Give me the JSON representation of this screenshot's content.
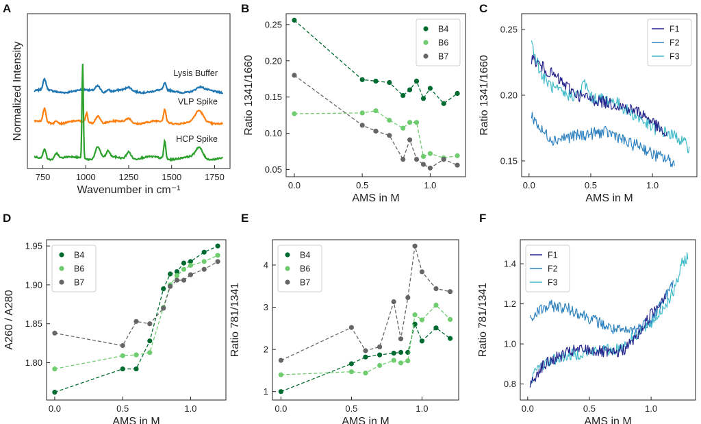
{
  "figure": {
    "panel_labels": [
      "A",
      "B",
      "C",
      "D",
      "E",
      "F"
    ]
  },
  "colors": {
    "B4": "#006b30",
    "B6": "#6fcc6f",
    "B7": "#666666",
    "F1": "#26268c",
    "F2": "#2f82c0",
    "F3": "#3fbac9",
    "lysis": "#1f77b4",
    "vlp": "#ff7f0e",
    "hcp": "#2ca02c"
  },
  "chart_data": [
    {
      "panel": "A",
      "type": "line",
      "title": "",
      "xlabel": "Wavenumber in cm⁻¹",
      "ylabel": "Normalized Intensity",
      "xlim": [
        660,
        1840
      ],
      "xticks": [
        "750",
        "1000",
        "1250",
        "1500",
        "1750"
      ],
      "y_tick_labels": false,
      "annotations": [
        "Lysis Buffer",
        "VLP Spike",
        "HCP Spike"
      ],
      "series": [
        {
          "name": "Lysis Buffer",
          "color_key": "lysis",
          "baseline": 2.6,
          "peaks": [
            [
              760,
              0.35,
              9
            ],
            [
              1070,
              0.2,
              14
            ],
            [
              1130,
              0.08,
              10
            ],
            [
              1250,
              0.1,
              14
            ],
            [
              1460,
              0.22,
              7
            ],
            [
              1665,
              0.1,
              20
            ]
          ]
        },
        {
          "name": "VLP Spike",
          "color_key": "vlp",
          "baseline": 1.55,
          "peaks": [
            [
              760,
              0.45,
              8
            ],
            [
              830,
              0.1,
              10
            ],
            [
              1005,
              0.3,
              6
            ],
            [
              1070,
              0.25,
              14
            ],
            [
              1250,
              0.15,
              15
            ],
            [
              1460,
              0.42,
              7
            ],
            [
              1660,
              0.35,
              22
            ]
          ]
        },
        {
          "name": "HCP Spike",
          "color_key": "hcp",
          "baseline": 0.35,
          "peaks": [
            [
              760,
              0.35,
              8
            ],
            [
              830,
              0.2,
              10
            ],
            [
              982,
              3.2,
              4
            ],
            [
              1070,
              0.4,
              14
            ],
            [
              1130,
              0.2,
              10
            ],
            [
              1250,
              0.25,
              14
            ],
            [
              1460,
              0.6,
              6
            ],
            [
              1660,
              0.35,
              20
            ]
          ]
        }
      ],
      "ylim": [
        0,
        5.2
      ]
    },
    {
      "panel": "B",
      "type": "scatter",
      "xlabel": "AMS in M",
      "ylabel": "Ratio 1341/1660",
      "xlim": [
        -0.06,
        1.26
      ],
      "ylim": [
        0.04,
        0.265
      ],
      "xticks": [
        0,
        0.5,
        1.0
      ],
      "xtick_labels": [
        "0.0",
        "0.5",
        "1.0"
      ],
      "yticks": [
        0.05,
        0.1,
        0.15,
        0.2,
        0.25
      ],
      "ytick_labels": [
        "0.05",
        "0.10",
        "0.15",
        "0.20",
        "0.25"
      ],
      "legend": "top-right",
      "x": [
        0,
        0.5,
        0.6,
        0.7,
        0.8,
        0.85,
        0.9,
        0.95,
        1.0,
        1.1,
        1.2
      ],
      "series": [
        {
          "name": "B4",
          "values": [
            0.256,
            0.174,
            0.172,
            0.17,
            0.152,
            0.16,
            0.172,
            0.148,
            0.162,
            0.141,
            0.155
          ]
        },
        {
          "name": "B6",
          "values": [
            0.127,
            0.128,
            0.131,
            0.118,
            0.107,
            0.115,
            0.115,
            0.068,
            0.072,
            0.066,
            0.069
          ]
        },
        {
          "name": "B7",
          "values": [
            0.18,
            0.111,
            0.103,
            0.097,
            0.064,
            0.091,
            0.064,
            0.057,
            0.052,
            0.064,
            0.056
          ]
        }
      ]
    },
    {
      "panel": "C",
      "type": "line",
      "xlabel": "AMS in M",
      "ylabel": "Ratio 1341/1660",
      "xlim": [
        -0.06,
        1.36
      ],
      "ylim": [
        0.138,
        0.262
      ],
      "xticks": [
        0,
        0.5,
        1.0
      ],
      "xtick_labels": [
        "0.0",
        "0.5",
        "1.0"
      ],
      "yticks": [
        0.15,
        0.2,
        0.25
      ],
      "ytick_labels": [
        "0.15",
        "0.20",
        "0.25"
      ],
      "legend": "top-right",
      "series": [
        {
          "name": "F1",
          "x_range": [
            0.02,
            1.12
          ],
          "anchors": [
            [
              0.02,
              0.228
            ],
            [
              0.1,
              0.222
            ],
            [
              0.2,
              0.215
            ],
            [
              0.3,
              0.207
            ],
            [
              0.4,
              0.2
            ],
            [
              0.5,
              0.197
            ],
            [
              0.6,
              0.195
            ],
            [
              0.7,
              0.193
            ],
            [
              0.8,
              0.19
            ],
            [
              0.9,
              0.187
            ],
            [
              1.0,
              0.18
            ],
            [
              1.12,
              0.168
            ]
          ]
        },
        {
          "name": "F2",
          "x_range": [
            0.02,
            1.18
          ],
          "anchors": [
            [
              0.02,
              0.185
            ],
            [
              0.1,
              0.173
            ],
            [
              0.2,
              0.166
            ],
            [
              0.3,
              0.168
            ],
            [
              0.45,
              0.17
            ],
            [
              0.6,
              0.172
            ],
            [
              0.7,
              0.17
            ],
            [
              0.8,
              0.163
            ],
            [
              0.9,
              0.162
            ],
            [
              1.0,
              0.155
            ],
            [
              1.1,
              0.152
            ],
            [
              1.18,
              0.148
            ]
          ]
        },
        {
          "name": "F3",
          "x_range": [
            0.02,
            1.3
          ],
          "anchors": [
            [
              0.02,
              0.24
            ],
            [
              0.1,
              0.215
            ],
            [
              0.2,
              0.205
            ],
            [
              0.3,
              0.2
            ],
            [
              0.4,
              0.2
            ],
            [
              0.45,
              0.21
            ],
            [
              0.5,
              0.198
            ],
            [
              0.6,
              0.197
            ],
            [
              0.7,
              0.195
            ],
            [
              0.8,
              0.188
            ],
            [
              0.9,
              0.182
            ],
            [
              1.0,
              0.175
            ],
            [
              1.1,
              0.172
            ],
            [
              1.2,
              0.168
            ],
            [
              1.3,
              0.16
            ]
          ]
        }
      ]
    },
    {
      "panel": "D",
      "type": "scatter",
      "xlabel": "AMS in M",
      "ylabel": "A260 / A280",
      "xlim": [
        -0.06,
        1.26
      ],
      "ylim": [
        1.752,
        1.958
      ],
      "xticks": [
        0,
        0.5,
        1.0
      ],
      "xtick_labels": [
        "0.0",
        "0.5",
        "1.0"
      ],
      "yticks": [
        1.8,
        1.85,
        1.9,
        1.95
      ],
      "ytick_labels": [
        "1.80",
        "1.85",
        "1.90",
        "1.95"
      ],
      "legend": "top-left",
      "x": [
        0,
        0.5,
        0.6,
        0.7,
        0.8,
        0.85,
        0.9,
        0.95,
        1.0,
        1.1,
        1.2
      ],
      "series": [
        {
          "name": "B4",
          "values": [
            1.762,
            1.792,
            1.792,
            1.828,
            1.895,
            1.914,
            1.917,
            1.928,
            1.93,
            1.942,
            1.95
          ]
        },
        {
          "name": "B6",
          "values": [
            1.792,
            1.809,
            1.81,
            1.813,
            1.871,
            1.9,
            1.912,
            1.92,
            1.925,
            1.93,
            1.938
          ]
        },
        {
          "name": "B7",
          "values": [
            1.838,
            1.822,
            1.853,
            1.85,
            1.87,
            1.898,
            1.906,
            1.906,
            1.913,
            1.92,
            1.93
          ]
        }
      ]
    },
    {
      "panel": "E",
      "type": "scatter",
      "xlabel": "AMS in M",
      "ylabel": "Ratio 781/1341",
      "xlim": [
        -0.06,
        1.26
      ],
      "ylim": [
        0.8,
        4.6
      ],
      "xticks": [
        0,
        0.5,
        1.0
      ],
      "xtick_labels": [
        "0.0",
        "0.5",
        "1.0"
      ],
      "yticks": [
        1,
        2,
        3,
        4
      ],
      "ytick_labels": [
        "1",
        "2",
        "3",
        "4"
      ],
      "legend": "top-left",
      "x": [
        0,
        0.5,
        0.6,
        0.7,
        0.8,
        0.85,
        0.9,
        0.95,
        1.0,
        1.1,
        1.2
      ],
      "series": [
        {
          "name": "B4",
          "values": [
            1.0,
            1.66,
            1.82,
            1.87,
            1.91,
            1.93,
            1.93,
            2.6,
            2.2,
            2.51,
            2.26
          ]
        },
        {
          "name": "B6",
          "values": [
            1.4,
            1.47,
            1.44,
            1.62,
            1.74,
            1.68,
            1.73,
            2.82,
            2.7,
            3.05,
            2.71
          ]
        },
        {
          "name": "B7",
          "values": [
            1.74,
            2.52,
            1.97,
            2.06,
            3.13,
            2.25,
            3.23,
            4.45,
            3.84,
            3.44,
            3.37
          ]
        }
      ]
    },
    {
      "panel": "F",
      "type": "line",
      "xlabel": "AMS in M",
      "ylabel": "Ratio 781/1341",
      "xlim": [
        -0.06,
        1.36
      ],
      "ylim": [
        0.72,
        1.52
      ],
      "xticks": [
        0,
        0.5,
        1.0
      ],
      "xtick_labels": [
        "0.0",
        "0.5",
        "1.0"
      ],
      "yticks": [
        0.8,
        1.0,
        1.2,
        1.4
      ],
      "ytick_labels": [
        "0.8",
        "1.0",
        "1.2",
        "1.4"
      ],
      "legend": "top-left",
      "series": [
        {
          "name": "F1",
          "x_range": [
            0.02,
            1.12
          ],
          "anchors": [
            [
              0.02,
              0.79
            ],
            [
              0.1,
              0.88
            ],
            [
              0.2,
              0.92
            ],
            [
              0.3,
              0.95
            ],
            [
              0.4,
              0.97
            ],
            [
              0.5,
              0.97
            ],
            [
              0.6,
              0.96
            ],
            [
              0.7,
              0.95
            ],
            [
              0.8,
              0.98
            ],
            [
              0.9,
              1.05
            ],
            [
              1.0,
              1.15
            ],
            [
              1.12,
              1.25
            ]
          ]
        },
        {
          "name": "F2",
          "x_range": [
            0.02,
            1.18
          ],
          "anchors": [
            [
              0.02,
              1.12
            ],
            [
              0.1,
              1.17
            ],
            [
              0.2,
              1.19
            ],
            [
              0.3,
              1.18
            ],
            [
              0.4,
              1.16
            ],
            [
              0.5,
              1.13
            ],
            [
              0.6,
              1.1
            ],
            [
              0.7,
              1.07
            ],
            [
              0.8,
              1.06
            ],
            [
              0.9,
              1.08
            ],
            [
              1.0,
              1.12
            ],
            [
              1.1,
              1.22
            ],
            [
              1.18,
              1.3
            ]
          ]
        },
        {
          "name": "F3",
          "x_range": [
            0.02,
            1.3
          ],
          "anchors": [
            [
              0.02,
              0.82
            ],
            [
              0.1,
              0.89
            ],
            [
              0.2,
              0.92
            ],
            [
              0.3,
              0.94
            ],
            [
              0.4,
              0.95
            ],
            [
              0.5,
              0.96
            ],
            [
              0.6,
              0.97
            ],
            [
              0.7,
              0.97
            ],
            [
              0.8,
              1.0
            ],
            [
              0.9,
              1.06
            ],
            [
              1.0,
              1.1
            ],
            [
              1.1,
              1.18
            ],
            [
              1.2,
              1.28
            ],
            [
              1.25,
              1.4
            ],
            [
              1.3,
              1.44
            ]
          ]
        }
      ]
    }
  ]
}
